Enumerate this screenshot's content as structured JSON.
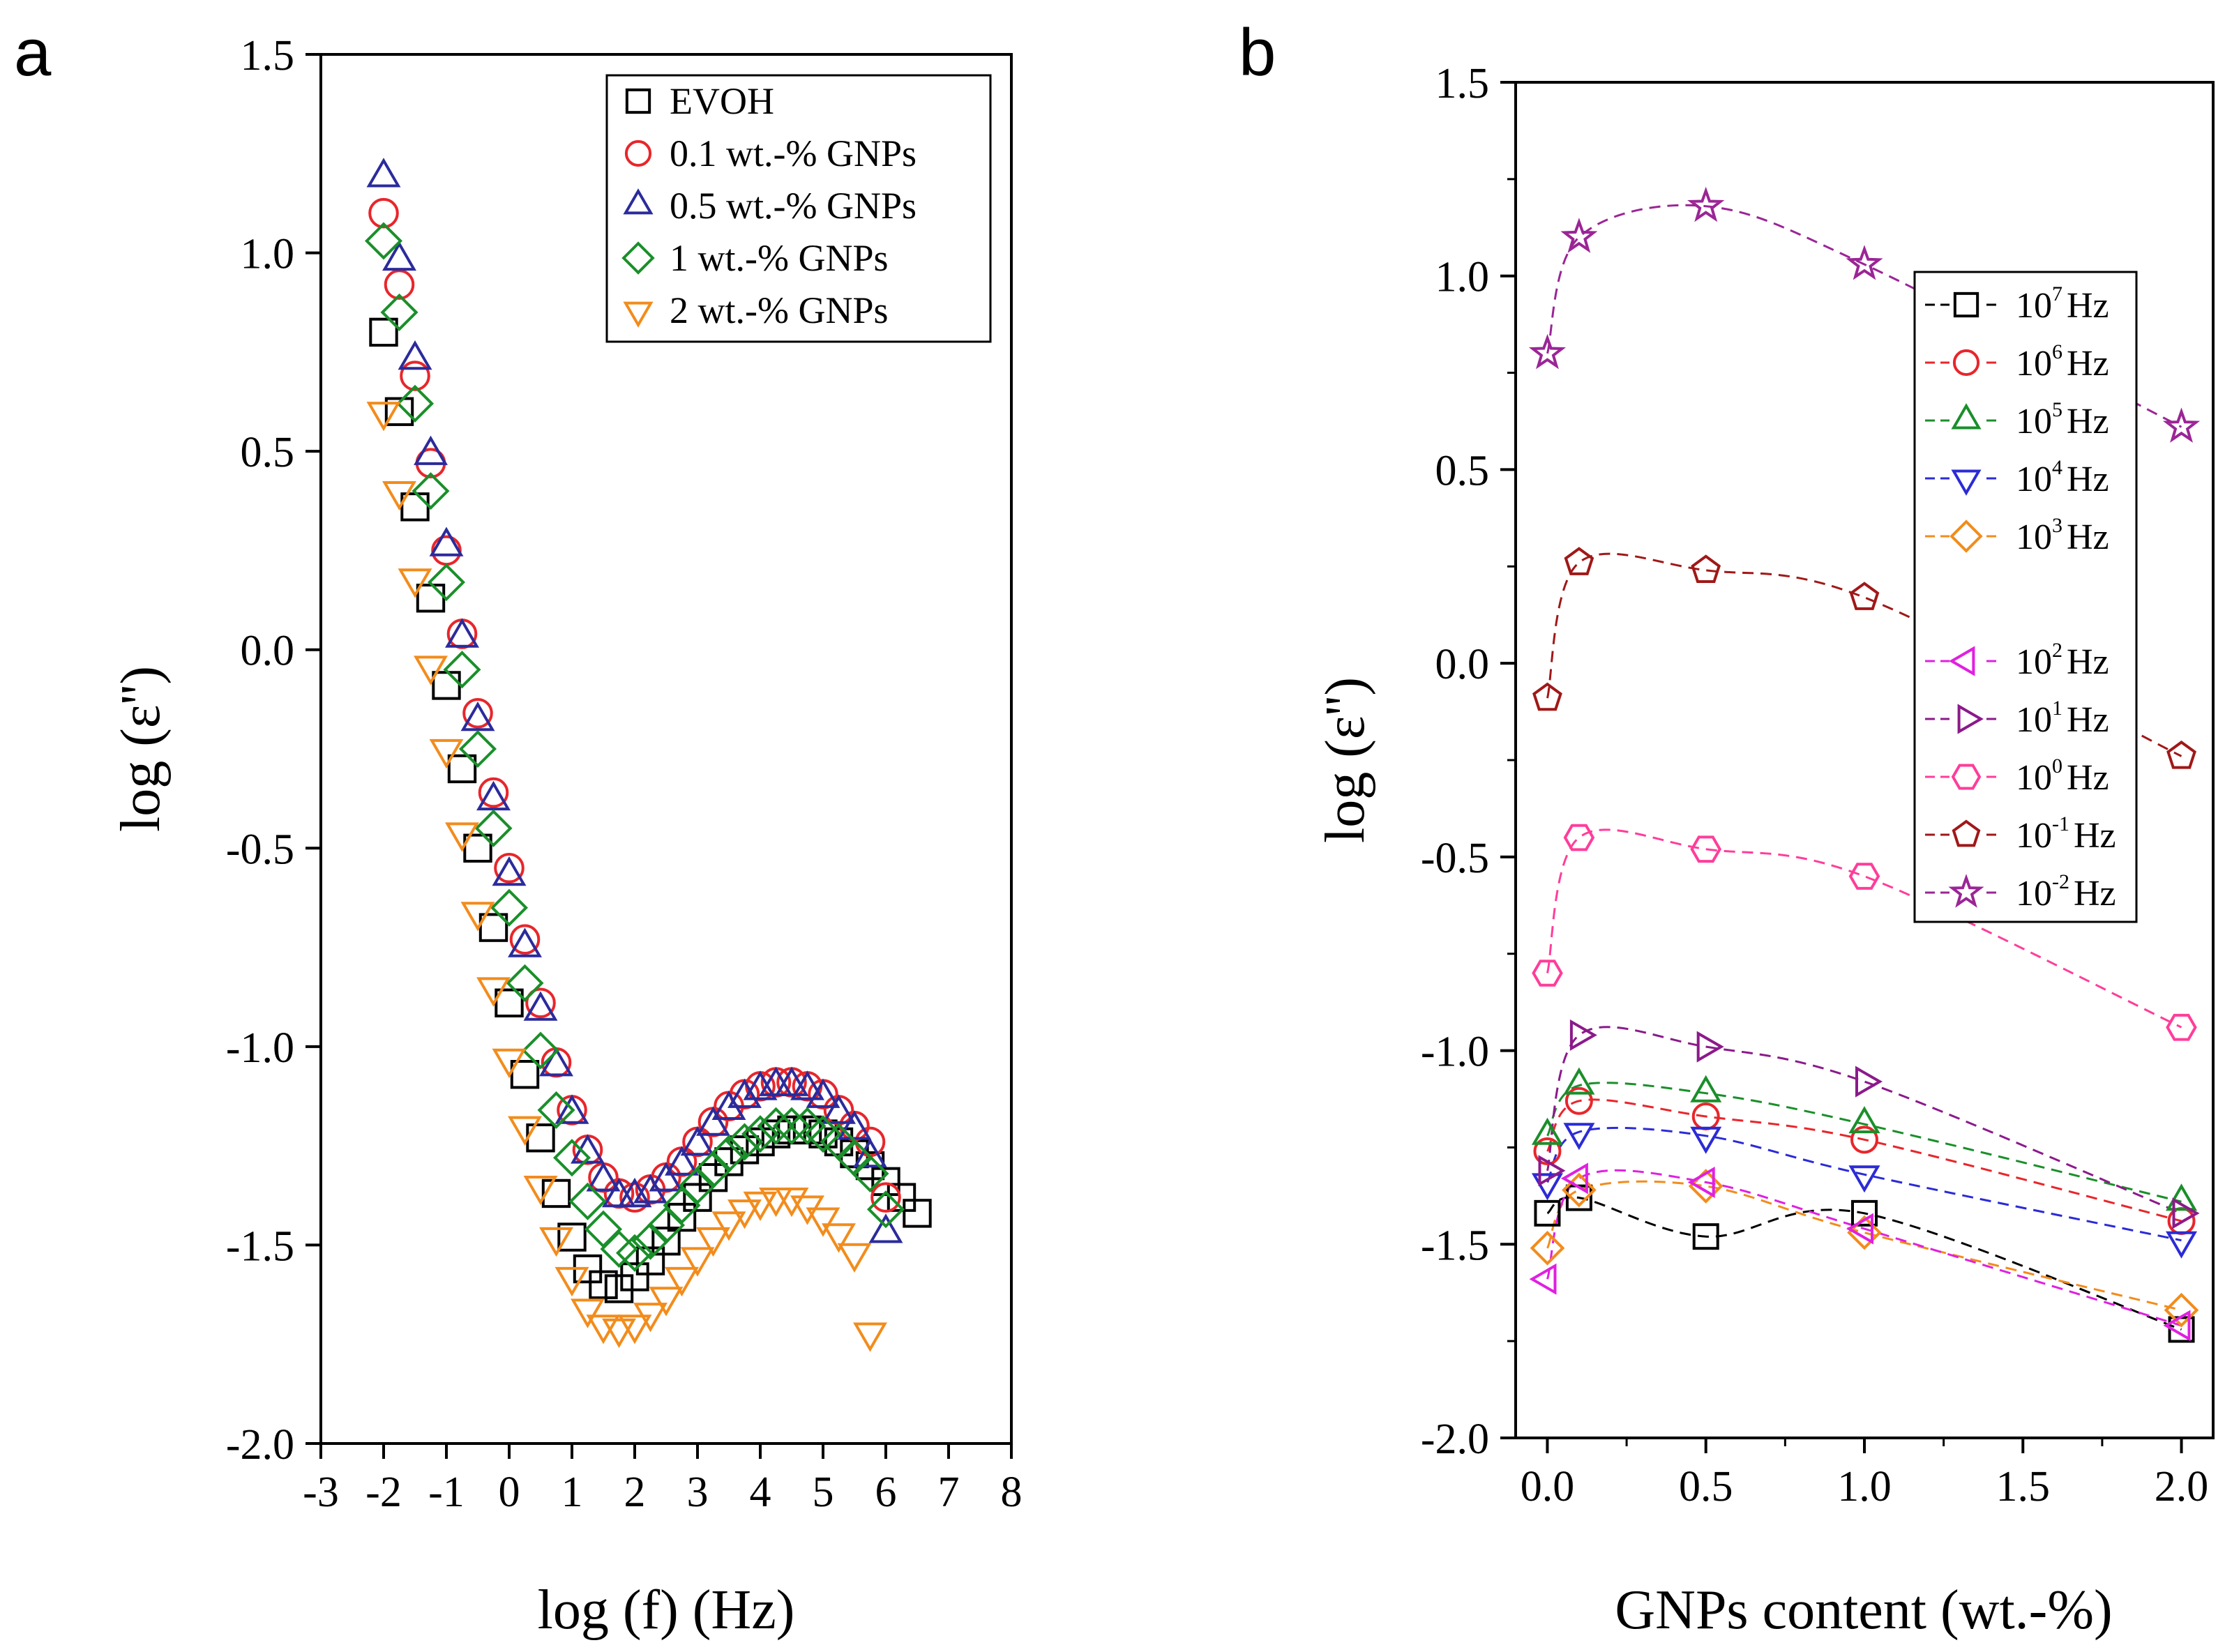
{
  "chart_data": [
    {
      "panel": "a",
      "type": "scatter",
      "title": "",
      "xlabel": "log (f) (Hz)",
      "ylabel": "log (ε'')",
      "xlim": [
        -3,
        8
      ],
      "ylim": [
        -2.0,
        1.5
      ],
      "xticks": [
        "-3",
        "-2",
        "-1",
        "0",
        "1",
        "2",
        "3",
        "4",
        "5",
        "6",
        "7",
        "8"
      ],
      "yticks": [
        "1.5",
        "1.0",
        "0.5",
        "0.0",
        "-0.5",
        "-1.0",
        "-1.5",
        "-2.0"
      ],
      "legend_position": "top-right",
      "x": [
        -2.0,
        -1.75,
        -1.5,
        -1.25,
        -1.0,
        -0.75,
        -0.5,
        -0.25,
        0.0,
        0.25,
        0.5,
        0.75,
        1.0,
        1.25,
        1.5,
        1.75,
        2.0,
        2.25,
        2.5,
        2.75,
        3.0,
        3.25,
        3.5,
        3.75,
        4.0,
        4.25,
        4.5,
        4.75,
        5.0,
        5.25,
        5.5,
        5.75,
        6.0,
        6.25,
        6.5,
        6.75,
        7.0
      ],
      "series": [
        {
          "name": "EVOH",
          "marker": "square",
          "color": "#000000",
          "values": [
            0.8,
            0.6,
            0.36,
            0.13,
            -0.09,
            -0.3,
            -0.5,
            -0.7,
            -0.89,
            -1.07,
            -1.23,
            -1.37,
            -1.48,
            -1.56,
            -1.6,
            -1.61,
            -1.58,
            -1.54,
            -1.49,
            -1.43,
            -1.38,
            -1.33,
            -1.29,
            -1.26,
            -1.24,
            -1.22,
            -1.21,
            -1.21,
            -1.22,
            -1.24,
            -1.27,
            -1.3,
            -1.34,
            -1.38,
            -1.42,
            null,
            null
          ]
        },
        {
          "name": "0.1 wt.-% GNPs",
          "marker": "circle",
          "color": "#e8262b",
          "values": [
            1.1,
            0.92,
            0.69,
            0.47,
            0.25,
            0.04,
            -0.16,
            -0.36,
            -0.55,
            -0.73,
            -0.89,
            -1.04,
            -1.16,
            -1.26,
            -1.33,
            -1.37,
            -1.38,
            -1.36,
            -1.33,
            -1.29,
            -1.24,
            -1.19,
            -1.15,
            -1.12,
            -1.1,
            -1.09,
            -1.09,
            -1.1,
            -1.12,
            -1.16,
            -1.2,
            -1.24,
            -1.38,
            null,
            null,
            null,
            null
          ]
        },
        {
          "name": "0.5 wt.-% GNPs",
          "marker": "triangle-up",
          "color": "#2b2b9c",
          "values": [
            1.19,
            0.98,
            0.73,
            0.49,
            0.26,
            0.03,
            -0.18,
            -0.38,
            -0.57,
            -0.75,
            -0.91,
            -1.05,
            -1.17,
            -1.27,
            -1.34,
            -1.38,
            -1.38,
            -1.37,
            -1.34,
            -1.3,
            -1.25,
            -1.2,
            -1.16,
            -1.13,
            -1.11,
            -1.1,
            -1.1,
            -1.11,
            -1.13,
            -1.17,
            -1.21,
            -1.28,
            -1.47,
            null,
            null,
            null,
            null
          ]
        },
        {
          "name": "1 wt.-% GNPs",
          "marker": "diamond",
          "color": "#1a8f2a",
          "values": [
            1.03,
            0.85,
            0.62,
            0.4,
            0.17,
            -0.05,
            -0.25,
            -0.45,
            -0.65,
            -0.84,
            -1.01,
            -1.16,
            -1.28,
            -1.39,
            -1.46,
            -1.51,
            -1.52,
            -1.49,
            -1.45,
            -1.4,
            -1.35,
            -1.31,
            -1.27,
            -1.24,
            -1.22,
            -1.2,
            -1.2,
            -1.2,
            -1.22,
            -1.24,
            -1.28,
            -1.32,
            -1.41,
            null,
            null,
            null,
            null
          ]
        },
        {
          "name": "2 wt.-% GNPs",
          "marker": "triangle-down",
          "color": "#f28c1c",
          "values": [
            0.6,
            0.4,
            0.18,
            -0.04,
            -0.25,
            -0.46,
            -0.66,
            -0.85,
            -1.03,
            -1.2,
            -1.35,
            -1.48,
            -1.58,
            -1.66,
            -1.7,
            -1.71,
            -1.7,
            -1.67,
            -1.63,
            -1.58,
            -1.53,
            -1.48,
            -1.44,
            -1.41,
            -1.39,
            -1.38,
            -1.38,
            -1.4,
            -1.43,
            -1.47,
            -1.52,
            -1.72,
            null,
            null,
            null,
            null,
            null
          ]
        }
      ]
    },
    {
      "panel": "b",
      "type": "line",
      "title": "",
      "xlabel": "GNPs content (wt.-%)",
      "ylabel": "log (ε'')",
      "xlim": [
        -0.1,
        2.1
      ],
      "ylim": [
        -2.0,
        1.5
      ],
      "xticks": [
        "0.0",
        "0.5",
        "1.0",
        "1.5",
        "2.0"
      ],
      "yticks": [
        "1.5",
        "1.0",
        "0.5",
        "0.0",
        "-0.5",
        "-1.0",
        "-1.5",
        "-2.0"
      ],
      "legend_position": "top-right",
      "x": [
        0.0,
        0.1,
        0.5,
        1.0,
        2.0
      ],
      "series": [
        {
          "name": "10^7 Hz",
          "base": "10",
          "exp": "7",
          "unit": "Hz",
          "marker": "square",
          "color": "#000000",
          "values": [
            -1.42,
            -1.38,
            -1.48,
            -1.42,
            -1.72
          ]
        },
        {
          "name": "10^6 Hz",
          "base": "10",
          "exp": "6",
          "unit": "Hz",
          "marker": "circle",
          "color": "#e8262b",
          "values": [
            -1.26,
            -1.13,
            -1.17,
            -1.23,
            -1.44
          ]
        },
        {
          "name": "10^5 Hz",
          "base": "10",
          "exp": "5",
          "unit": "Hz",
          "marker": "triangle-up",
          "color": "#1a8f2a",
          "values": [
            -1.22,
            -1.09,
            -1.11,
            -1.19,
            -1.39
          ]
        },
        {
          "name": "10^4 Hz",
          "base": "10",
          "exp": "4",
          "unit": "Hz",
          "marker": "triangle-down",
          "color": "#2b2bd6",
          "values": [
            -1.34,
            -1.21,
            -1.22,
            -1.32,
            -1.49
          ]
        },
        {
          "name": "10^3 Hz",
          "base": "10",
          "exp": "3",
          "unit": "Hz",
          "marker": "diamond",
          "color": "#f28c1c",
          "values": [
            -1.51,
            -1.36,
            -1.35,
            -1.47,
            -1.67
          ]
        },
        {
          "name": "10^2 Hz",
          "base": "10",
          "exp": "2",
          "unit": "Hz",
          "marker": "triangle-left",
          "color": "#e020e0",
          "values": [
            -1.59,
            -1.33,
            -1.34,
            -1.46,
            -1.71
          ]
        },
        {
          "name": "10^1 Hz",
          "base": "10",
          "exp": "1",
          "unit": "Hz",
          "marker": "triangle-right",
          "color": "#8b1a8b",
          "values": [
            -1.31,
            -0.96,
            -0.99,
            -1.08,
            -1.42
          ]
        },
        {
          "name": "10^0 Hz",
          "base": "10",
          "exp": "0",
          "unit": "Hz",
          "marker": "hexagon",
          "color": "#ff3d9a",
          "values": [
            -0.8,
            -0.45,
            -0.48,
            -0.55,
            -0.94
          ]
        },
        {
          "name": "10^-1 Hz",
          "base": "10",
          "exp": "-1",
          "unit": "Hz",
          "marker": "pentagon",
          "color": "#a01818",
          "values": [
            -0.09,
            0.26,
            0.24,
            0.17,
            -0.24
          ]
        },
        {
          "name": "10^-2 Hz",
          "base": "10",
          "exp": "-2",
          "unit": "Hz",
          "marker": "star",
          "color": "#9b2596",
          "values": [
            0.8,
            1.1,
            1.18,
            1.03,
            0.61
          ]
        }
      ]
    }
  ],
  "panel_labels": {
    "a": "a",
    "b": "b"
  }
}
